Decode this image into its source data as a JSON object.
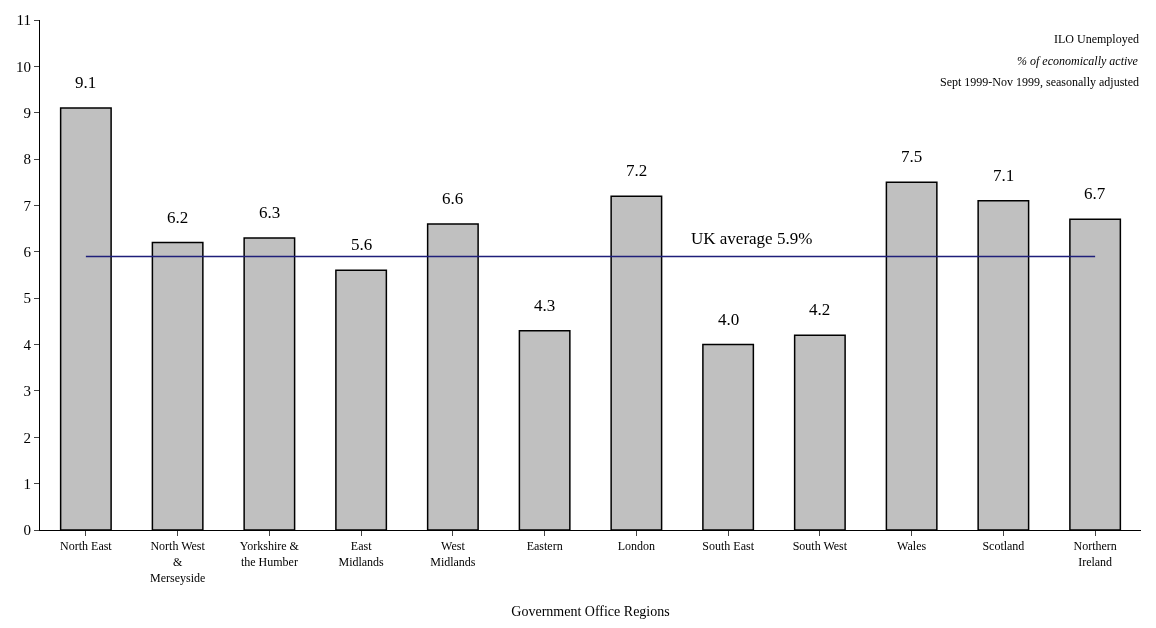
{
  "chart_data": {
    "type": "bar",
    "xlabel": "Government Office Regions",
    "categories": [
      "North East",
      "North West\n&\nMerseyside",
      "Yorkshire &\nthe Humber",
      "East\nMidlands",
      "West\nMidlands",
      "Eastern",
      "London",
      "South East",
      "South West",
      "Wales",
      "Scotland",
      "Northern\nIreland"
    ],
    "values": [
      9.1,
      6.2,
      6.3,
      5.6,
      6.6,
      4.3,
      7.2,
      4.0,
      4.2,
      7.5,
      7.1,
      6.7
    ],
    "value_labels": [
      "9.1",
      "6.2",
      "6.3",
      "5.6",
      "6.6",
      "4.3",
      "7.2",
      "4.0",
      "4.2",
      "7.5",
      "7.1",
      "6.7"
    ],
    "color": "#c0c0c0",
    "ylim": [
      0,
      11
    ],
    "yticks": [
      0,
      1,
      2,
      3,
      4,
      5,
      6,
      7,
      8,
      9,
      10,
      11
    ],
    "ref_lines": [
      {
        "axis": "y",
        "value": 5.9,
        "label": "UK average 5.9%",
        "color": "#1f1f7a"
      }
    ],
    "annotations": [
      "ILO Unemployed",
      "% of economically active",
      "Sept 1999-Nov 1999, seasonally adjusted"
    ]
  }
}
